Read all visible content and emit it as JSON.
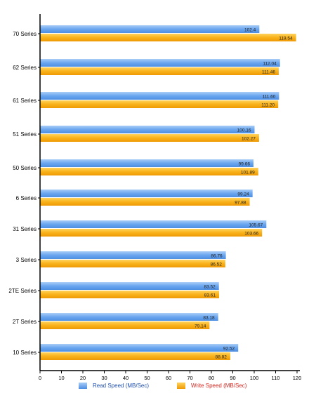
{
  "chart_data": {
    "type": "bar",
    "orientation": "horizontal",
    "categories": [
      "70 Series",
      "62 Series",
      "61 Series",
      "51 Series",
      "50 Series",
      "6 Series",
      "31 Series",
      "3 Series",
      "2TE Series",
      "2T Series",
      "10 Series"
    ],
    "series": [
      {
        "name": "Read Speed (MB/Sec)",
        "color": "#6aa6ef",
        "legend_text_color": "#1f4fae",
        "values": [
          102.4,
          112.04,
          111.6,
          100.16,
          99.66,
          99.24,
          105.67,
          86.76,
          83.52,
          83.18,
          92.52
        ],
        "labels": [
          "102.4",
          "112.04",
          "111.60",
          "100.16",
          "99.66",
          "99.24",
          "105.67",
          "86.76",
          "83.52",
          "83.18",
          "92.52"
        ]
      },
      {
        "name": "Write Speed (MB/Sec)",
        "color": "#f9b21a",
        "legend_text_color": "#d7261e",
        "values": [
          119.54,
          111.46,
          111.2,
          102.27,
          101.89,
          97.88,
          103.66,
          86.52,
          83.61,
          79.14,
          88.82
        ],
        "labels": [
          "119.54",
          "111.46",
          "111.20",
          "102.27",
          "101.89",
          "97.88",
          "103.66",
          "86.52",
          "83.61",
          "79.14",
          "88.82"
        ]
      }
    ],
    "x_ticks": [
      "0",
      "10",
      "20",
      "30",
      "40",
      "50",
      "60",
      "70",
      "80",
      "90",
      "100",
      "110",
      "120"
    ],
    "xlim": [
      0,
      120
    ],
    "title": "",
    "xlabel": "",
    "ylabel": "",
    "grid": false,
    "legend_position": "bottom"
  }
}
